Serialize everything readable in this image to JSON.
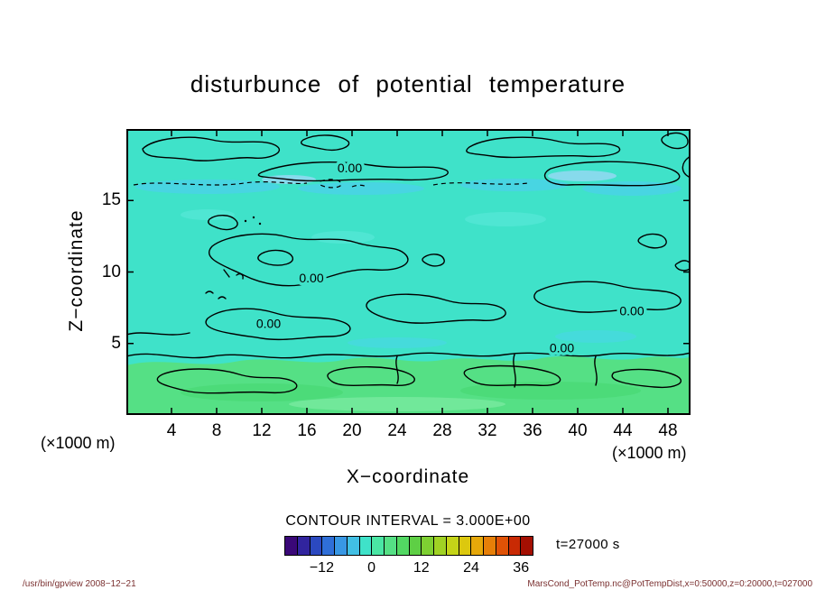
{
  "title": "disturbunce of potential temperature",
  "axes": {
    "x_label": "X−coordinate",
    "y_label": "Z−coordinate",
    "x_unit_left": "(×1000 m)",
    "x_unit_right": "(×1000 m)",
    "x_ticks": [
      4,
      8,
      12,
      16,
      20,
      24,
      28,
      32,
      36,
      40,
      44,
      48
    ],
    "y_ticks": [
      5,
      10,
      15
    ],
    "x_range": [
      0,
      50
    ],
    "y_range": [
      0,
      20
    ]
  },
  "contour_info": {
    "label": "CONTOUR INTERVAL = 3.000E+00"
  },
  "time_label": "t=27000 s",
  "colorbar": {
    "range": [
      -21,
      39
    ],
    "colors": [
      "#3a0878",
      "#31249e",
      "#2b49c0",
      "#2f6fd8",
      "#3897e4",
      "#41bfe4",
      "#3fe2c9",
      "#4ae6a4",
      "#55e085",
      "#52d863",
      "#5ecf45",
      "#7ed032",
      "#a0d224",
      "#c4d418",
      "#dcc80e",
      "#e6a80a",
      "#e67f08",
      "#e05206",
      "#c92a04",
      "#a40f02"
    ],
    "ticks": [
      {
        "value": -12,
        "label": "−12"
      },
      {
        "value": 0,
        "label": "0"
      },
      {
        "value": 12,
        "label": "12"
      },
      {
        "value": 24,
        "label": "24"
      },
      {
        "value": 36,
        "label": "36"
      }
    ]
  },
  "footer": {
    "left": "/usr/bin/gpview  2008−12−21",
    "right": "MarsCond_PotTemp.nc@PotTempDist,x=0:50000,z=0:20000,t=027000"
  },
  "chart_data": {
    "type": "heatmap",
    "title": "disturbunce of potential temperature",
    "xlabel": "X−coordinate (×1000 m)",
    "ylabel": "Z−coordinate (×1000 m)",
    "x_range": [
      0,
      50
    ],
    "z_range": [
      0,
      20
    ],
    "contour_interval": 3.0,
    "zero_contour_label": "0.00",
    "contour_labels": [
      {
        "text": "0.00",
        "x": 19.8,
        "z": 17.3
      },
      {
        "text": "0.00",
        "x": 16.4,
        "z": 9.6
      },
      {
        "text": "0.00",
        "x": 12.6,
        "z": 6.4
      },
      {
        "text": "0.00",
        "x": 44.8,
        "z": 7.3
      },
      {
        "text": "0.00",
        "x": 38.6,
        "z": 4.7
      }
    ],
    "colorbar_range": [
      -21,
      39
    ],
    "colorbar_tick_values": [
      -12,
      0,
      12,
      24,
      36
    ],
    "regions": [
      {
        "description": "upper layer z ≈ 4–20 km: values near 0 (−3..0 band, cyan) with scattered closed 0.00 contours and dashed negative contours near z ≈ 16–17 km",
        "color": "#3fe2c9"
      },
      {
        "description": "near-surface layer z ≈ 0–4 km: values ≈ +3..+6 (green band) with closed contour blobs",
        "color": "#55e085"
      }
    ],
    "time": "t=27000 s"
  }
}
